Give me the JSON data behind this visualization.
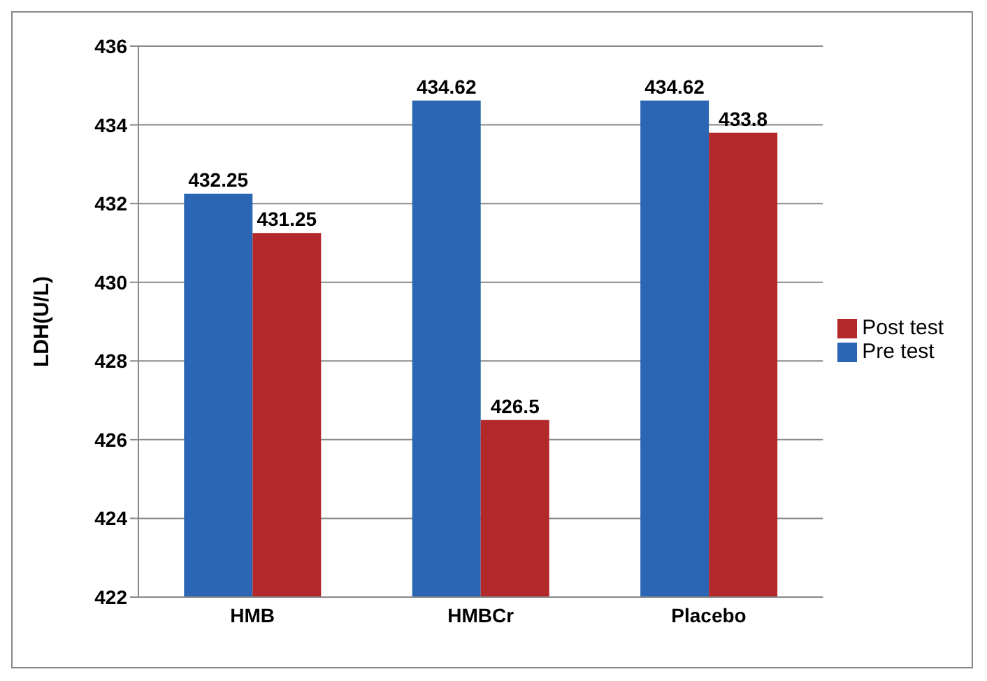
{
  "chart_data": {
    "type": "bar",
    "ylabel": "LDH(U/L)",
    "categories": [
      "HMB",
      "HMBCr",
      "Placebo"
    ],
    "series": [
      {
        "name": "Pre test",
        "color": "#2a66b3",
        "values": [
          432.25,
          434.62,
          434.62
        ]
      },
      {
        "name": "Post test",
        "color": "#b3282a",
        "values": [
          431.25,
          426.5,
          433.8
        ]
      }
    ],
    "ylim": [
      422,
      436
    ],
    "yticks": [
      422,
      424,
      426,
      428,
      430,
      432,
      434,
      436
    ],
    "grid": "y",
    "legend": "right",
    "data_labels": true
  }
}
